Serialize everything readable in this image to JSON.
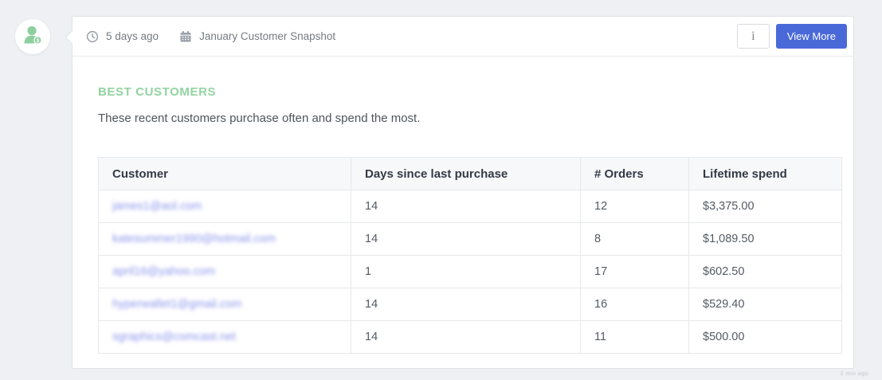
{
  "page": {
    "background_color": "#eef0f3"
  },
  "avatar": {
    "icon": "customer-person-with-dollar-badge",
    "color": "#8ecf9e"
  },
  "header": {
    "time_ago": "5 days ago",
    "title": "January Customer Snapshot",
    "info_button_label": "i",
    "view_more_label": "View More",
    "accent_color": "#4a69d9"
  },
  "content": {
    "heading": "BEST CUSTOMERS",
    "heading_color": "#93d3a2",
    "subtitle": "These recent customers purchase often and spend the most."
  },
  "table": {
    "columns": [
      "Customer",
      "Days since last purchase",
      "# Orders",
      "Lifetime spend"
    ],
    "rows": [
      {
        "customer_email_redacted": "james1@aol.com",
        "days_since_last_purchase": "14",
        "orders": "12",
        "lifetime_spend": "$3,375.00"
      },
      {
        "customer_email_redacted": "katesummer1990@hotmail.com",
        "days_since_last_purchase": "14",
        "orders": "8",
        "lifetime_spend": "$1,089.50"
      },
      {
        "customer_email_redacted": "april16@yahoo.com",
        "days_since_last_purchase": "1",
        "orders": "17",
        "lifetime_spend": "$602.50"
      },
      {
        "customer_email_redacted": "hyperwallet1@gmail.com",
        "days_since_last_purchase": "14",
        "orders": "16",
        "lifetime_spend": "$529.40"
      },
      {
        "customer_email_redacted": "sgraphics@comcast.net",
        "days_since_last_purchase": "14",
        "orders": "11",
        "lifetime_spend": "$500.00"
      }
    ]
  },
  "watermark": "2 min ago"
}
